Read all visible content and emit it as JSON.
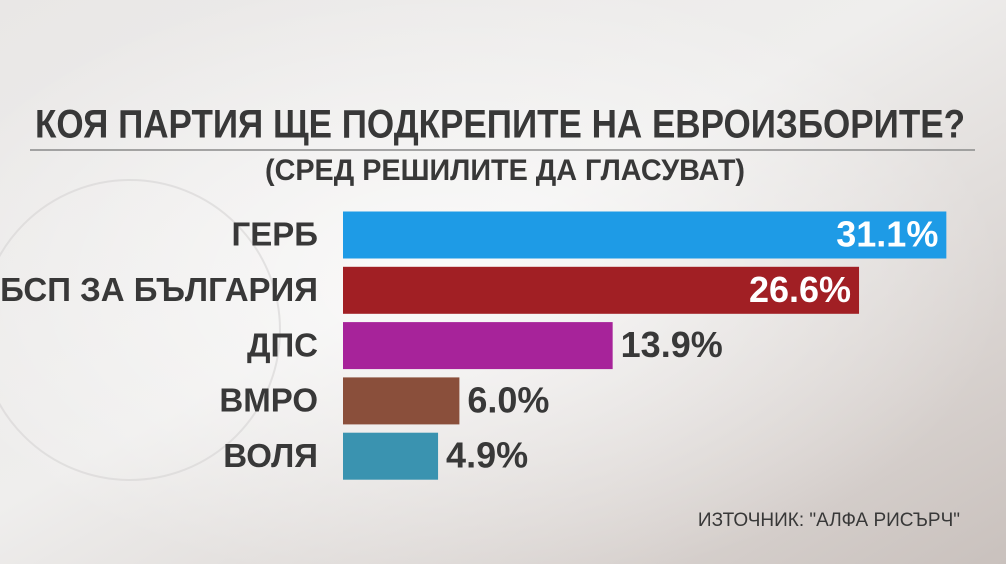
{
  "chart_data": {
    "type": "bar",
    "orientation": "horizontal",
    "title": "КОЯ ПАРТИЯ ЩЕ ПОДКРЕПИТЕ НА ЕВРОИЗБОРИТЕ?",
    "subtitle": "(СРЕД РЕШИЛИТЕ ДА ГЛАСУВАТ)",
    "categories": [
      "ГЕРБ",
      "БСП ЗА БЪЛГАРИЯ",
      "ДПС",
      "ВМРО",
      "ВОЛЯ"
    ],
    "values": [
      31.1,
      26.6,
      13.9,
      6.0,
      4.9
    ],
    "value_labels": [
      "31.1%",
      "26.6%",
      "13.9%",
      "6.0%",
      "4.9%"
    ],
    "colors": [
      "#1e9be6",
      "#a11f24",
      "#a7239a",
      "#8a4f3b",
      "#3a93b0"
    ],
    "source": "ИЗТОЧНИК: \"АЛФА РИСЪРЧ\""
  }
}
